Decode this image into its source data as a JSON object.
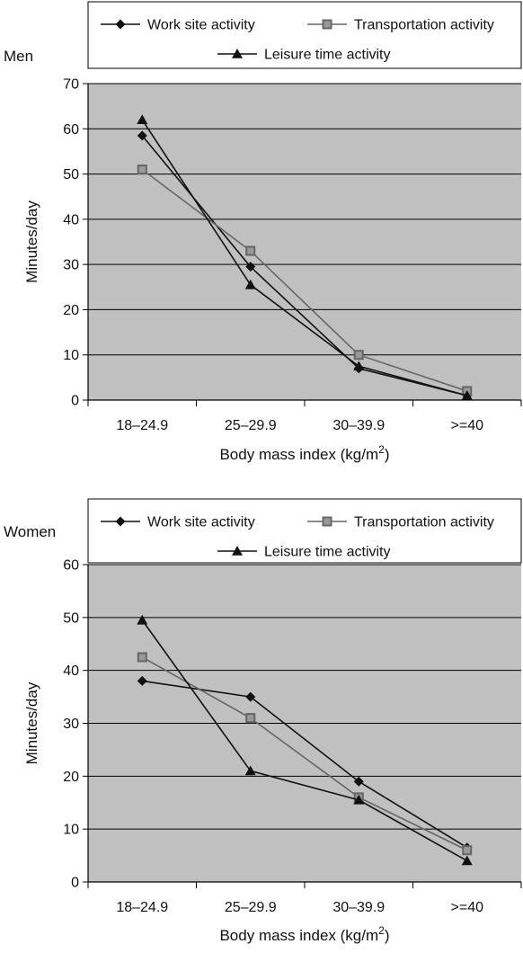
{
  "chart_data": [
    {
      "type": "line",
      "panel_label": "Men",
      "categories": [
        "18–24.9",
        "25–29.9",
        "30–39.9",
        ">=40"
      ],
      "series": [
        {
          "name": "Work site activity",
          "marker": "diamond",
          "color": "#111111",
          "values": [
            58.5,
            29.5,
            7,
            1
          ]
        },
        {
          "name": "Transportation activity",
          "marker": "square",
          "color": "#666666",
          "values": [
            51,
            33,
            10,
            2
          ]
        },
        {
          "name": "Leisure time activity",
          "marker": "triangle",
          "color": "#111111",
          "values": [
            62,
            25.5,
            7.5,
            1
          ]
        }
      ],
      "xlabel": "Body mass index (kg/m",
      "xlabel_sup": "2",
      "xlabel_end": ")",
      "ylabel": "Minutes/day",
      "ylim": [
        0,
        70
      ],
      "yticks": [
        0,
        10,
        20,
        30,
        40,
        50,
        60,
        70
      ],
      "grid": true,
      "plot_background": "#c0c0c0",
      "legend_placement": "top"
    },
    {
      "type": "line",
      "panel_label": "Women",
      "categories": [
        "18–24.9",
        "25–29.9",
        "30–39.9",
        ">=40"
      ],
      "series": [
        {
          "name": "Work site activity",
          "marker": "diamond",
          "color": "#111111",
          "values": [
            38,
            35,
            19,
            6.5
          ]
        },
        {
          "name": "Transportation activity",
          "marker": "square",
          "color": "#666666",
          "values": [
            42.5,
            31,
            16,
            6
          ]
        },
        {
          "name": "Leisure time activity",
          "marker": "triangle",
          "color": "#111111",
          "values": [
            49.5,
            21,
            15.5,
            4
          ]
        }
      ],
      "xlabel": "Body mass index (kg/m",
      "xlabel_sup": "2",
      "xlabel_end": ")",
      "ylabel": "Minutes/day",
      "ylim": [
        0,
        60
      ],
      "yticks": [
        0,
        10,
        20,
        30,
        40,
        50,
        60
      ],
      "grid": true,
      "plot_background": "#c0c0c0",
      "legend_placement": "top"
    }
  ]
}
